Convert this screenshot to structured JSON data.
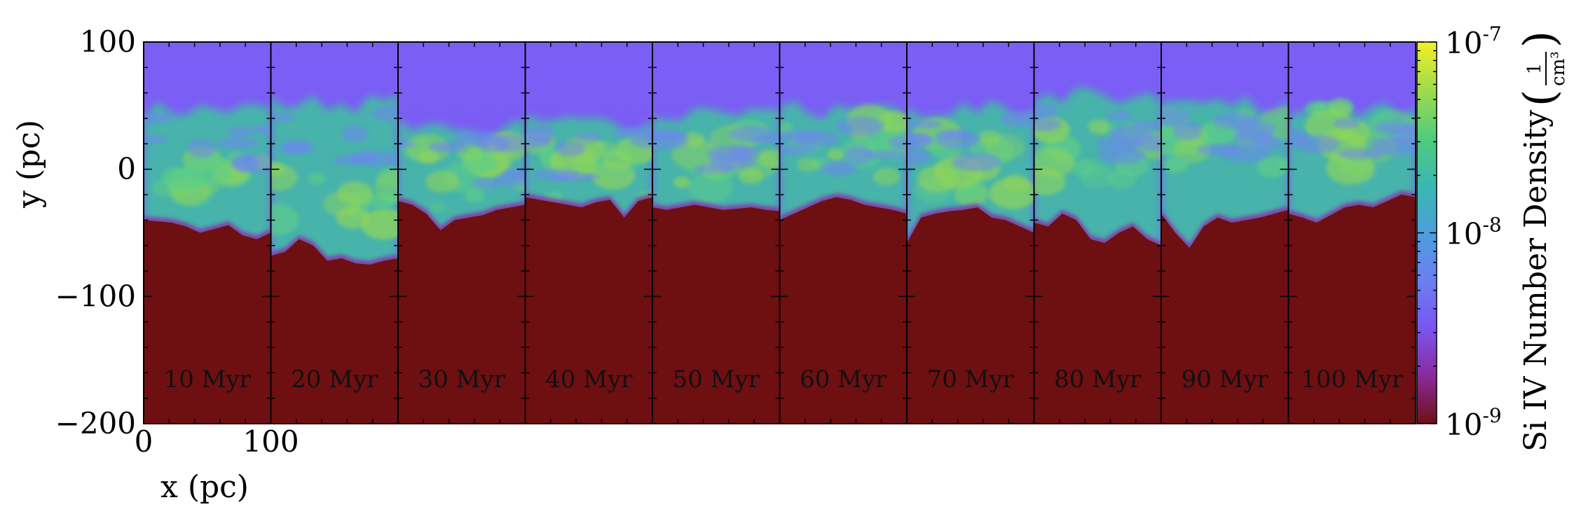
{
  "chart_data": {
    "type": "heatmap",
    "title": "",
    "xlabel": "x  (pc)",
    "ylabel": "y  (pc)",
    "xlim": [
      0,
      100
    ],
    "ylim": [
      -200,
      100
    ],
    "x_ticks": [
      "0",
      "100"
    ],
    "y_ticks": [
      "100",
      "0",
      "−100",
      "−200"
    ],
    "y_tick_values": [
      100,
      0,
      -100,
      -200
    ],
    "panels": [
      {
        "label": "10 Myr",
        "interface_y": [
          -40,
          -41,
          -42,
          -45,
          -50,
          -47,
          -44,
          -52,
          -55,
          -50
        ],
        "front_top": 55,
        "turb_core": [
          0,
          -10
        ]
      },
      {
        "label": "20 Myr",
        "interface_y": [
          -68,
          -65,
          -55,
          -60,
          -72,
          -70,
          -74,
          -75,
          -72,
          -70
        ],
        "front_top": 60,
        "turb_core": [
          0,
          -20
        ]
      },
      {
        "label": "30 Myr",
        "interface_y": [
          -25,
          -28,
          -35,
          -48,
          -40,
          -38,
          -36,
          -32,
          -30,
          -28
        ],
        "front_top": 40,
        "turb_core": [
          0,
          -5
        ]
      },
      {
        "label": "40 Myr",
        "interface_y": [
          -22,
          -24,
          -26,
          -28,
          -30,
          -26,
          -24,
          -38,
          -25,
          -22
        ],
        "front_top": 45,
        "turb_core": [
          0,
          0
        ]
      },
      {
        "label": "50 Myr",
        "interface_y": [
          -30,
          -32,
          -30,
          -28,
          -30,
          -32,
          -31,
          -30,
          -32,
          -33
        ],
        "front_top": 50,
        "turb_core": [
          0,
          5
        ]
      },
      {
        "label": "60 Myr",
        "interface_y": [
          -40,
          -35,
          -30,
          -25,
          -22,
          -24,
          -28,
          -30,
          -32,
          -35
        ],
        "front_top": 55,
        "turb_core": [
          0,
          15
        ]
      },
      {
        "label": "70 Myr",
        "interface_y": [
          -58,
          -38,
          -35,
          -33,
          -32,
          -30,
          -38,
          -40,
          -45,
          -50
        ],
        "front_top": 55,
        "turb_core": [
          0,
          5
        ]
      },
      {
        "label": "80 Myr",
        "interface_y": [
          -42,
          -45,
          -35,
          -40,
          -55,
          -58,
          -50,
          -45,
          -55,
          -60
        ],
        "front_top": 65,
        "turb_core": [
          0,
          10
        ]
      },
      {
        "label": "90 Myr",
        "interface_y": [
          -35,
          -50,
          -62,
          -45,
          -38,
          -42,
          -40,
          -38,
          -35,
          -32
        ],
        "front_top": 60,
        "turb_core": [
          0,
          20
        ]
      },
      {
        "label": "100 Myr",
        "interface_y": [
          -35,
          -38,
          -42,
          -36,
          -30,
          -28,
          -30,
          -25,
          -20,
          -22
        ],
        "front_top": 55,
        "turb_core": [
          0,
          25
        ]
      }
    ],
    "colorbar": {
      "label": "Si IV Number Density",
      "unit_numerator": "1",
      "unit_denominator": "cm³",
      "scale": "log",
      "range": [
        1e-09,
        1e-07
      ],
      "ticks": [
        {
          "mantissa": "10",
          "exponent": "-7",
          "value": 1e-07
        },
        {
          "mantissa": "10",
          "exponent": "-8",
          "value": 1e-08
        },
        {
          "mantissa": "10",
          "exponent": "-9",
          "value": 1e-09
        }
      ],
      "colors": [
        "#6e0f12",
        "#8a2a9c",
        "#7a55f0",
        "#6a7ff2",
        "#4d9edc",
        "#39b8b0",
        "#52cc7c",
        "#9fdc4c",
        "#f3f025"
      ]
    },
    "background_colors": {
      "hot_gas": "#7a56f2",
      "hot_gas_upper": "#7b5ff5",
      "cold_cloud": "#6e0f12",
      "turbulent": "#45b8a8",
      "turbulent_bright": "#8fd55a"
    }
  }
}
